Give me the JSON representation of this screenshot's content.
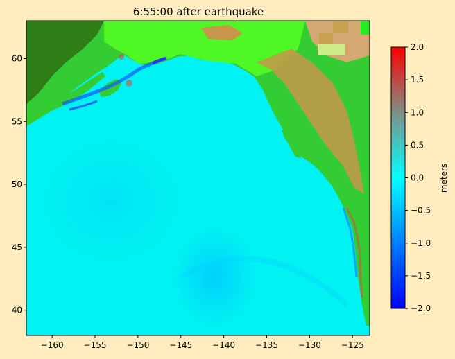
{
  "title": "6:55:00 after earthquake",
  "map": {
    "x_ticks": [
      -160,
      -155,
      -150,
      -145,
      -140,
      -135,
      -130,
      -125
    ],
    "x_tick_labels": [
      "−160",
      "−155",
      "−150",
      "−145",
      "−140",
      "−135",
      "−130",
      "−125"
    ],
    "x_range": [
      -163,
      -123
    ],
    "y_ticks": [
      40,
      45,
      50,
      55,
      60
    ],
    "y_tick_labels": [
      "40",
      "45",
      "50",
      "55",
      "60"
    ],
    "y_range": [
      38,
      63
    ],
    "colors": {
      "ocean": "#00f2f2",
      "ocean_deep": "#00d6ff",
      "land_green": "#33cc33",
      "land_dark": "#2e7d16",
      "land_bright": "#55ff22",
      "land_high": "#c8954a",
      "land_peak": "#d4a870",
      "negative_wave": "#1060ff",
      "positive_wave": "#d05050"
    }
  },
  "colorbar": {
    "label": "meters",
    "ticks": [
      2.0,
      1.5,
      1.0,
      0.5,
      0.0,
      -0.5,
      -1.0,
      -1.5,
      -2.0
    ],
    "tick_labels": [
      "2.0",
      "1.5",
      "1.0",
      "0.5",
      "0.0",
      "−0.5",
      "−1.0",
      "−1.5",
      "−2.0"
    ],
    "range": [
      -2.0,
      2.0
    ],
    "colors": [
      "#0000ff",
      "#00ffff",
      "#ff0000"
    ]
  }
}
